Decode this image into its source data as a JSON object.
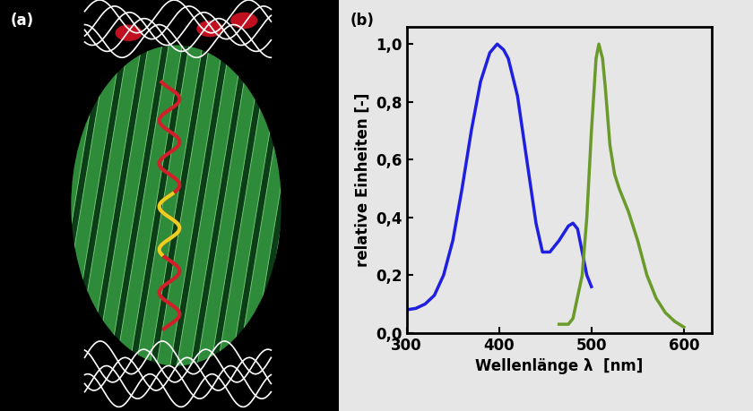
{
  "image": {
    "label": "(a)"
  },
  "chart_data": {
    "type": "line",
    "title": "(b)",
    "x_label": "Wellenlänge λ  [nm]",
    "y_label": "relative Einheiten [-]",
    "xlim": [
      300,
      630
    ],
    "xticks": [
      300,
      400,
      500,
      600
    ],
    "ylim": [
      0,
      1.06
    ],
    "yticks": [
      {
        "value": 0,
        "label": "0,0"
      },
      {
        "value": 0.2,
        "label": "0,2"
      },
      {
        "value": 0.4,
        "label": "0,4"
      },
      {
        "value": 0.6,
        "label": "0,6"
      },
      {
        "value": 0.8,
        "label": "0,8"
      },
      {
        "value": 1.0,
        "label": "1,0"
      }
    ],
    "series": [
      {
        "color": "#1f1fe0",
        "x": [
          300,
          310,
          320,
          330,
          340,
          350,
          360,
          370,
          380,
          390,
          398,
          405,
          410,
          420,
          430,
          440,
          447,
          455,
          465,
          475,
          480,
          485,
          490,
          495,
          500
        ],
        "values": [
          0.08,
          0.085,
          0.1,
          0.13,
          0.2,
          0.32,
          0.5,
          0.7,
          0.87,
          0.97,
          1.0,
          0.98,
          0.95,
          0.82,
          0.6,
          0.38,
          0.28,
          0.28,
          0.32,
          0.37,
          0.38,
          0.36,
          0.28,
          0.2,
          0.16
        ]
      },
      {
        "color": "#6a9a2a",
        "x": [
          465,
          475,
          480,
          490,
          495,
          500,
          505,
          508,
          512,
          515,
          520,
          525,
          530,
          540,
          550,
          560,
          570,
          580,
          590,
          600
        ],
        "values": [
          0.03,
          0.03,
          0.05,
          0.2,
          0.4,
          0.7,
          0.95,
          1.0,
          0.95,
          0.85,
          0.65,
          0.55,
          0.5,
          0.42,
          0.32,
          0.2,
          0.12,
          0.07,
          0.04,
          0.02
        ]
      }
    ]
  }
}
